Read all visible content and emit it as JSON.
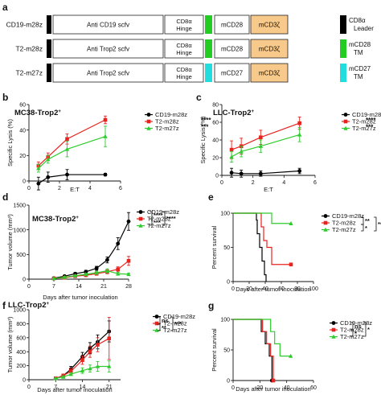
{
  "panel_a": {
    "letter": "a",
    "constructs": [
      {
        "name": "CD19-m28z",
        "scfv": "Anti CD19 scfv",
        "hinge": [
          "CD8α",
          "Hinge"
        ],
        "tm_color": "#22cc22",
        "costim": "mCD28",
        "signal": "mCD3ζ"
      },
      {
        "name": "T2-m28z",
        "scfv": "Anti Trop2 scfv",
        "hinge": [
          "CD8α",
          "Hinge"
        ],
        "tm_color": "#22cc22",
        "costim": "mCD28",
        "signal": "mCD3ζ"
      },
      {
        "name": "T2-m27z",
        "scfv": "Anti Trop2 scfv",
        "hinge": [
          "CD8α",
          "Hinge"
        ],
        "tm_color": "#22dddd",
        "costim": "mCD27",
        "signal": "mCD3ζ"
      }
    ],
    "legend": [
      {
        "lines": [
          "CD8α",
          "Leader"
        ],
        "color": "#000000"
      },
      {
        "lines": [
          "mCD28",
          "TM"
        ],
        "color": "#22cc22"
      },
      {
        "lines": [
          "mCD27",
          "TM"
        ],
        "color": "#22dddd"
      }
    ],
    "signal_color": "#f7c98b"
  },
  "chart_data": [
    {
      "panel": "b",
      "type": "line",
      "title": "MC38-Trop2+",
      "xlabel": "E:T",
      "ylabel": "Specific Lysis (%)",
      "xlim": [
        0,
        6
      ],
      "ylim": [
        0,
        60
      ],
      "xticks": [
        0,
        2,
        4,
        6
      ],
      "yticks": [
        0,
        20,
        40,
        60
      ],
      "series": [
        {
          "name": "CD19-m28z",
          "color": "#000000",
          "marker": "circle",
          "x": [
            0.625,
            1.25,
            2.5,
            5
          ],
          "y": [
            -2,
            3,
            5,
            5
          ],
          "err": [
            5,
            4,
            4,
            1
          ]
        },
        {
          "name": "T2-m28z",
          "color": "#e8231f",
          "marker": "square",
          "x": [
            0.625,
            1.25,
            2.5,
            5
          ],
          "y": [
            12,
            19,
            33,
            48
          ],
          "err": [
            3,
            3,
            4,
            3
          ]
        },
        {
          "name": "T2-m27z",
          "color": "#2ecc2e",
          "marker": "triangle",
          "x": [
            0.625,
            1.25,
            2.5,
            5
          ],
          "y": [
            10,
            17,
            25,
            35
          ],
          "err": [
            3,
            3,
            6,
            8
          ]
        }
      ],
      "legend_position": "top-right",
      "significance": [
        {
          "label": "****"
        },
        {
          "label": "***"
        }
      ]
    },
    {
      "panel": "c",
      "type": "line",
      "title": "LLC-Trop2+",
      "xlabel": "E:T",
      "ylabel": "Specific Lysis (%)",
      "xlim": [
        0,
        6
      ],
      "ylim": [
        0,
        80
      ],
      "xticks": [
        0,
        2,
        4,
        6
      ],
      "yticks": [
        0,
        20,
        40,
        60,
        80
      ],
      "series": [
        {
          "name": "CD19-m28z",
          "color": "#000000",
          "marker": "circle",
          "x": [
            0.625,
            1.25,
            2.5,
            5
          ],
          "y": [
            3,
            2,
            2,
            5
          ],
          "err": [
            5,
            4,
            3,
            3
          ]
        },
        {
          "name": "T2-m28z",
          "color": "#e8231f",
          "marker": "square",
          "x": [
            0.625,
            1.25,
            2.5,
            5
          ],
          "y": [
            29,
            33,
            43,
            59
          ],
          "err": [
            10,
            9,
            8,
            7
          ]
        },
        {
          "name": "T2-m27z",
          "color": "#2ecc2e",
          "marker": "triangle",
          "x": [
            0.625,
            1.25,
            2.5,
            5
          ],
          "y": [
            21,
            27,
            33,
            46
          ],
          "err": [
            6,
            6,
            7,
            8
          ]
        }
      ],
      "legend_position": "top-right",
      "significance": [
        {
          "label": "****"
        },
        {
          "label": "***"
        }
      ]
    },
    {
      "panel": "d",
      "type": "line",
      "title": "MC38-Trop2+",
      "xlabel": "Days after tumor inoculation",
      "ylabel": "Tumor volume (mm³)",
      "xlim": [
        0,
        28
      ],
      "ylim": [
        0,
        1500
      ],
      "xticks": [
        0,
        7,
        14,
        21,
        28
      ],
      "yticks": [
        0,
        500,
        1000,
        1500
      ],
      "series": [
        {
          "name": "CD19-m28z",
          "color": "#000000",
          "marker": "circle",
          "x": [
            7,
            10,
            13,
            16,
            19,
            22,
            25,
            28
          ],
          "y": [
            20,
            60,
            110,
            150,
            220,
            390,
            720,
            1170
          ],
          "err": [
            5,
            15,
            25,
            30,
            40,
            60,
            120,
            180
          ]
        },
        {
          "name": "T2-m28z",
          "color": "#e8231f",
          "marker": "square",
          "x": [
            7,
            10,
            13,
            16,
            19,
            22,
            25,
            28
          ],
          "y": [
            15,
            30,
            60,
            80,
            110,
            150,
            200,
            370
          ],
          "err": [
            5,
            10,
            15,
            20,
            30,
            40,
            50,
            90
          ]
        },
        {
          "name": "T2-m27z",
          "color": "#2ecc2e",
          "marker": "triangle",
          "x": [
            7,
            10,
            13,
            16,
            19,
            22,
            25,
            28
          ],
          "y": [
            15,
            40,
            70,
            100,
            130,
            170,
            110,
            100
          ],
          "err": [
            5,
            10,
            15,
            20,
            30,
            40,
            30,
            20
          ]
        }
      ],
      "legend_position": "top-left",
      "significance": [
        {
          "label": "****"
        },
        {
          "label": "***"
        },
        {
          "label": "****"
        }
      ]
    },
    {
      "panel": "e",
      "type": "line",
      "xlabel": "Days after tumor inoculation",
      "ylabel": "Percent survival",
      "xlim": [
        0,
        100
      ],
      "ylim": [
        0,
        100
      ],
      "xticks": [
        0,
        20,
        40,
        60,
        80,
        100
      ],
      "yticks": [
        0,
        50,
        100
      ],
      "series": [
        {
          "name": "CD19-m28z",
          "color": "#000000",
          "marker": "none",
          "steps": [
            [
              0,
              100
            ],
            [
              29,
              100
            ],
            [
              29,
              90
            ],
            [
              30,
              90
            ],
            [
              30,
              70
            ],
            [
              33,
              70
            ],
            [
              33,
              50
            ],
            [
              36,
              50
            ],
            [
              36,
              30
            ],
            [
              39,
              30
            ],
            [
              39,
              10
            ],
            [
              41,
              10
            ],
            [
              41,
              0
            ]
          ]
        },
        {
          "name": "T2-m28z",
          "color": "#e8231f",
          "marker": "square",
          "steps": [
            [
              0,
              100
            ],
            [
              35,
              100
            ],
            [
              35,
              80
            ],
            [
              38,
              80
            ],
            [
              38,
              60
            ],
            [
              42,
              60
            ],
            [
              42,
              50
            ],
            [
              48,
              50
            ],
            [
              48,
              25
            ],
            [
              72,
              25
            ]
          ]
        },
        {
          "name": "T2-m27z",
          "color": "#2ecc2e",
          "marker": "triangle",
          "steps": [
            [
              0,
              100
            ],
            [
              48,
              100
            ],
            [
              48,
              85
            ],
            [
              72,
              85
            ]
          ]
        }
      ],
      "legend_position": "top-right",
      "significance": [
        {
          "label": "**"
        },
        {
          "label": "*"
        },
        {
          "label": "***"
        }
      ]
    },
    {
      "panel": "f",
      "type": "line",
      "title": "LLC-Trop2+",
      "xlabel": "Days after tumor inoculation",
      "ylabel": "Tumor volume (mm³)",
      "xlim": [
        0,
        24
      ],
      "ylim": [
        0,
        1000
      ],
      "xticks": [
        0,
        7,
        14,
        21
      ],
      "yticks": [
        0,
        200,
        400,
        600,
        800,
        1000
      ],
      "series": [
        {
          "name": "CD19-m28z",
          "color": "#000000",
          "marker": "circle",
          "x": [
            7,
            9,
            11,
            14,
            16,
            18,
            21
          ],
          "y": [
            20,
            60,
            150,
            330,
            450,
            540,
            690
          ],
          "err": [
            5,
            20,
            40,
            60,
            80,
            100,
            150
          ]
        },
        {
          "name": "T2-m28z",
          "color": "#e8231f",
          "marker": "square",
          "x": [
            7,
            9,
            11,
            14,
            16,
            18,
            21
          ],
          "y": [
            20,
            60,
            120,
            280,
            400,
            500,
            590
          ],
          "err": [
            5,
            20,
            40,
            60,
            80,
            100,
            300
          ]
        },
        {
          "name": "T2-m27z",
          "color": "#2ecc2e",
          "marker": "triangle",
          "x": [
            7,
            9,
            11,
            14,
            16,
            18,
            21
          ],
          "y": [
            20,
            40,
            80,
            130,
            160,
            190,
            190
          ],
          "err": [
            5,
            10,
            20,
            40,
            50,
            70,
            80
          ]
        }
      ],
      "legend_position": "top-left",
      "significance": [
        {
          "label": "ns"
        },
        {
          "label": "**"
        },
        {
          "label": "***"
        }
      ]
    },
    {
      "panel": "g",
      "type": "line",
      "xlabel": "Days after tumor inoculation",
      "ylabel": "Percent survival",
      "xlim": [
        0,
        60
      ],
      "ylim": [
        0,
        100
      ],
      "xticks": [
        0,
        20,
        40,
        60
      ],
      "yticks": [
        0,
        50,
        100
      ],
      "series": [
        {
          "name": "CD19-m28z",
          "color": "#000000",
          "marker": "circle",
          "steps": [
            [
              0,
              100
            ],
            [
              21,
              100
            ],
            [
              21,
              80
            ],
            [
              24,
              80
            ],
            [
              24,
              60
            ],
            [
              27,
              60
            ],
            [
              27,
              40
            ],
            [
              29,
              40
            ],
            [
              29,
              0
            ]
          ]
        },
        {
          "name": "T2-m28z",
          "color": "#e8231f",
          "marker": "square",
          "steps": [
            [
              0,
              100
            ],
            [
              22,
              100
            ],
            [
              22,
              80
            ],
            [
              25,
              80
            ],
            [
              25,
              60
            ],
            [
              28,
              60
            ],
            [
              28,
              40
            ],
            [
              30,
              40
            ],
            [
              30,
              0
            ]
          ]
        },
        {
          "name": "T2-m27z",
          "color": "#2ecc2e",
          "marker": "triangle",
          "steps": [
            [
              0,
              100
            ],
            [
              28,
              100
            ],
            [
              28,
              80
            ],
            [
              31,
              80
            ],
            [
              31,
              60
            ],
            [
              35,
              60
            ],
            [
              35,
              40
            ],
            [
              43,
              40
            ]
          ]
        }
      ],
      "legend_position": "top-right",
      "significance": [
        {
          "label": "ns"
        },
        {
          "label": "*"
        },
        {
          "label": "*"
        }
      ]
    }
  ]
}
